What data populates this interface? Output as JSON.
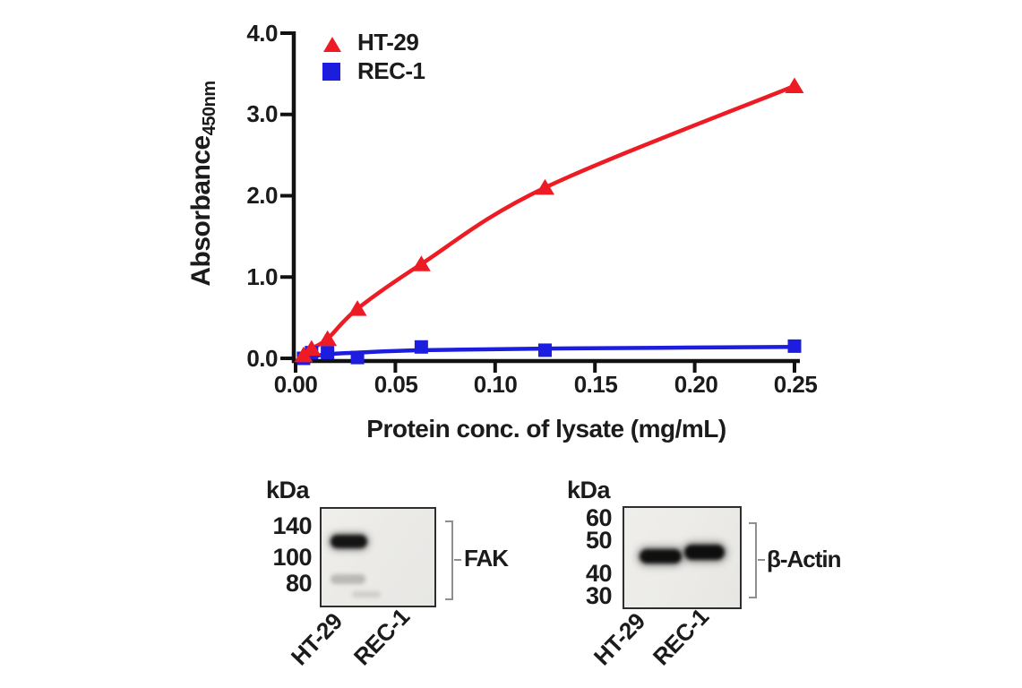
{
  "chart_data": {
    "type": "line",
    "title": "",
    "xlabel": "Protein conc. of lysate (mg/mL)",
    "ylabel": "Absorbance",
    "ylabel_subscript": "450nm",
    "xlim": [
      0,
      0.25
    ],
    "ylim": [
      0,
      4.0
    ],
    "x_tick_labels": [
      "0.00",
      "0.05",
      "0.10",
      "0.15",
      "0.20",
      "0.25"
    ],
    "y_tick_labels": [
      "0.0",
      "1.0",
      "2.0",
      "3.0",
      "4.0"
    ],
    "grid": false,
    "legend_position": "top-left-inside",
    "axis_color": "#111111",
    "series": [
      {
        "name": "HT-29",
        "marker": "triangle",
        "color": "#ed1c24",
        "x": [
          0.004,
          0.008,
          0.016,
          0.031,
          0.063,
          0.125,
          0.25
        ],
        "y": [
          0.04,
          0.12,
          0.24,
          0.61,
          1.16,
          2.1,
          3.35
        ]
      },
      {
        "name": "REC-1",
        "marker": "square",
        "color": "#1d1de0",
        "x": [
          0.004,
          0.008,
          0.016,
          0.031,
          0.063,
          0.125,
          0.25
        ],
        "y": [
          0.0,
          0.07,
          0.07,
          0.01,
          0.14,
          0.1,
          0.15
        ],
        "curve_x": [
          0.002,
          0.016,
          0.031,
          0.063,
          0.125,
          0.25
        ],
        "curve_y": [
          0.0,
          0.05,
          0.07,
          0.1,
          0.12,
          0.14
        ]
      }
    ]
  },
  "blots": {
    "fak": {
      "kda_header": "kDa",
      "marker_labels": [
        "140",
        "100",
        "80"
      ],
      "bracket_label": "FAK",
      "lane_labels": [
        "HT-29",
        "REC-1"
      ],
      "bands": [
        {
          "lane": "HT-29",
          "intensity": "strong"
        },
        {
          "lane": "HT-29",
          "intensity": "faint"
        },
        {
          "lane": "HT-29",
          "intensity": "trace"
        }
      ]
    },
    "actin": {
      "kda_header": "kDa",
      "marker_labels": [
        "60",
        "50",
        "40",
        "30"
      ],
      "bracket_label": "β-Actin",
      "lane_labels": [
        "HT-29",
        "REC-1"
      ],
      "bands": [
        {
          "lane": "HT-29",
          "intensity": "strong"
        },
        {
          "lane": "REC-1",
          "intensity": "strong"
        }
      ]
    }
  }
}
